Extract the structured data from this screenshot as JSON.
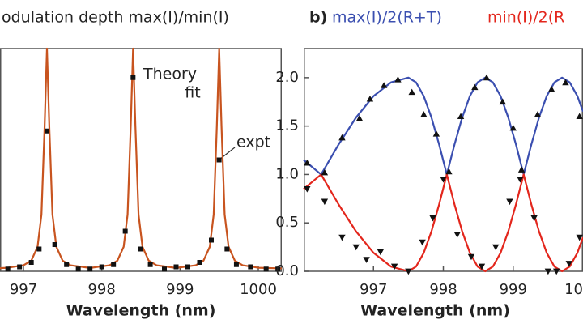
{
  "chart_data": [
    {
      "type": "line",
      "title": "odulation depth max(I)/min(I)",
      "xlabel": "Wavelength (nm)",
      "annotations": [
        "Theory",
        "fit",
        "expt"
      ],
      "xlim": [
        996.7,
        1000.3
      ],
      "xticks": [
        997,
        998,
        999,
        1000
      ],
      "ylim": [
        0,
        1.0
      ],
      "series": [
        {
          "mode": "line",
          "color": "#c8541f",
          "x": [
            996.7,
            996.8,
            997.0,
            997.1,
            997.18,
            997.23,
            997.27,
            997.3,
            997.33,
            997.37,
            997.42,
            997.5,
            997.6,
            997.85,
            998.1,
            998.2,
            998.28,
            998.33,
            998.37,
            998.4,
            998.43,
            998.47,
            998.52,
            998.6,
            998.7,
            998.95,
            999.2,
            999.3,
            999.38,
            999.43,
            999.47,
            999.5,
            999.53,
            999.57,
            999.62,
            999.7,
            999.8,
            1000.0,
            1000.3
          ],
          "values": [
            0.014,
            0.016,
            0.027,
            0.048,
            0.11,
            0.255,
            0.65,
            1.0,
            0.65,
            0.255,
            0.11,
            0.048,
            0.027,
            0.015,
            0.027,
            0.048,
            0.11,
            0.255,
            0.65,
            1.0,
            0.65,
            0.255,
            0.11,
            0.048,
            0.027,
            0.015,
            0.027,
            0.048,
            0.11,
            0.255,
            0.65,
            1.0,
            0.65,
            0.255,
            0.11,
            0.048,
            0.027,
            0.016,
            0.013
          ]
        },
        {
          "mode": "markers",
          "marker": "square",
          "color": "#111111",
          "x": [
            996.8,
            996.95,
            997.1,
            997.2,
            997.3,
            997.4,
            997.55,
            997.7,
            997.85,
            998.0,
            998.15,
            998.3,
            998.4,
            998.5,
            998.62,
            998.8,
            998.95,
            999.1,
            999.25,
            999.4,
            999.5,
            999.6,
            999.72,
            999.9,
            1000.1,
            1000.25
          ],
          "values": [
            0.01,
            0.02,
            0.04,
            0.1,
            0.63,
            0.12,
            0.03,
            0.01,
            0.01,
            0.02,
            0.03,
            0.18,
            0.87,
            0.1,
            0.03,
            0.01,
            0.02,
            0.02,
            0.04,
            0.14,
            0.5,
            0.1,
            0.03,
            0.02,
            0.01,
            0.01
          ]
        }
      ]
    },
    {
      "type": "line",
      "title": "b)",
      "xlabel": "Wavelength (nm)",
      "xlim": [
        996.0,
        1000.0
      ],
      "xticks": [
        997,
        998,
        999,
        1000
      ],
      "ylim": [
        0,
        2.3
      ],
      "yticks": [
        {
          "value": 0,
          "label": "0.0"
        },
        0.5,
        {
          "value": 1,
          "label": "1.0"
        },
        1.5,
        {
          "value": 2,
          "label": "2.0"
        }
      ],
      "series": [
        {
          "name": "max(I)/2(R+T)",
          "mode": "line",
          "color": "#3b4fb0",
          "x": [
            996.0,
            996.25,
            996.5,
            996.75,
            997.0,
            997.25,
            997.5,
            997.61,
            997.72,
            997.83,
            997.94,
            998.05,
            998.16,
            998.27,
            998.38,
            998.49,
            998.6,
            998.71,
            998.82,
            998.93,
            999.04,
            999.15,
            999.26,
            999.37,
            999.48,
            999.59,
            999.7,
            999.81,
            999.92,
            1000.0
          ],
          "values": [
            1.15,
            1,
            1.309,
            1.588,
            1.809,
            1.951,
            2,
            1.951,
            1.809,
            1.588,
            1.309,
            1,
            1.309,
            1.588,
            1.809,
            1.951,
            2,
            1.951,
            1.809,
            1.588,
            1.309,
            1,
            1.309,
            1.588,
            1.809,
            1.951,
            2,
            1.951,
            1.809,
            1.65
          ]
        },
        {
          "name": "min(I)/2(R",
          "mode": "line",
          "color": "#e3261c",
          "x": [
            996.0,
            996.25,
            996.5,
            996.75,
            997.0,
            997.25,
            997.5,
            997.61,
            997.72,
            997.83,
            997.94,
            998.05,
            998.16,
            998.27,
            998.38,
            998.49,
            998.6,
            998.71,
            998.82,
            998.93,
            999.04,
            999.15,
            999.26,
            999.37,
            999.48,
            999.59,
            999.7,
            999.81,
            999.92,
            1000.0
          ],
          "values": [
            0.85,
            1,
            0.691,
            0.412,
            0.191,
            0.049,
            0,
            0.049,
            0.191,
            0.412,
            0.691,
            1,
            0.691,
            0.412,
            0.191,
            0.049,
            0,
            0.049,
            0.191,
            0.412,
            0.691,
            1,
            0.691,
            0.412,
            0.191,
            0.049,
            0,
            0.049,
            0.191,
            0.35
          ]
        },
        {
          "mode": "markers",
          "marker": "triangle-up",
          "color": "#111111",
          "x": [
            996.05,
            996.3,
            996.55,
            996.8,
            996.95,
            997.15,
            997.35,
            997.55,
            997.72,
            997.9,
            998.08,
            998.25,
            998.45,
            998.62,
            998.85,
            999.0,
            999.12,
            999.35,
            999.55,
            999.75,
            999.95
          ],
          "values": [
            1.12,
            1.02,
            1.38,
            1.58,
            1.78,
            1.92,
            1.98,
            1.85,
            1.62,
            1.42,
            1.03,
            1.6,
            1.9,
            2.0,
            1.75,
            1.48,
            1.05,
            1.62,
            1.88,
            1.95,
            1.6
          ]
        },
        {
          "mode": "markers",
          "marker": "triangle-down",
          "color": "#111111",
          "x": [
            996.05,
            996.3,
            996.55,
            996.75,
            996.9,
            997.1,
            997.3,
            997.5,
            997.7,
            997.85,
            998.0,
            998.2,
            998.4,
            998.55,
            998.75,
            998.95,
            999.1,
            999.3,
            999.5,
            999.62,
            999.8,
            999.95
          ],
          "values": [
            0.85,
            0.72,
            0.35,
            0.25,
            0.12,
            0.2,
            0.05,
            0.0,
            0.3,
            0.55,
            0.95,
            0.38,
            0.15,
            0.05,
            0.25,
            0.72,
            0.95,
            0.55,
            0.0,
            0.0,
            0.08,
            0.35
          ]
        }
      ]
    }
  ]
}
